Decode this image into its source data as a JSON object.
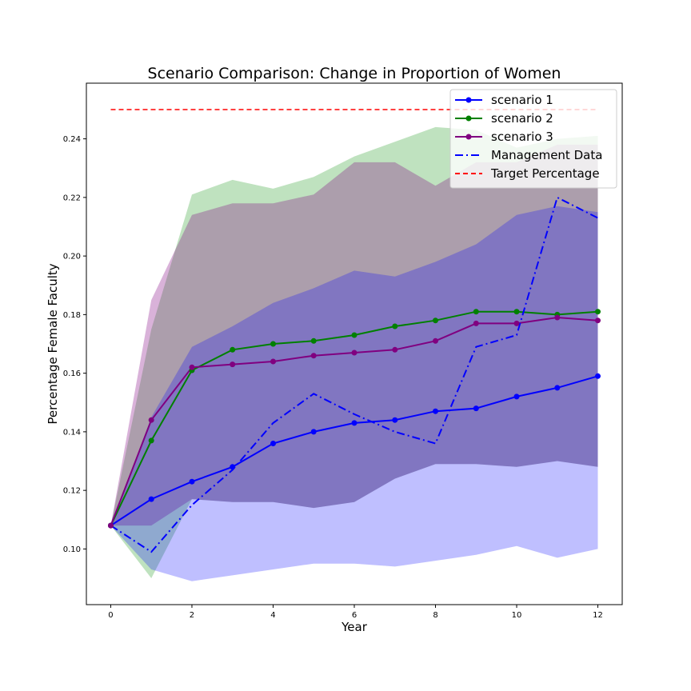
{
  "chart_data": {
    "type": "line",
    "title": "Scenario Comparison: Change in Proportion of Women",
    "xlabel": "Year",
    "ylabel": "Percentage Female Faculty",
    "xlim": [
      -0.6,
      12.6
    ],
    "ylim": [
      0.081,
      0.259
    ],
    "x_ticks": [
      0,
      2,
      4,
      6,
      8,
      10,
      12
    ],
    "y_ticks": [
      0.1,
      0.12,
      0.14,
      0.16,
      0.18,
      0.2,
      0.22,
      0.24
    ],
    "x_tick_labels": [
      "0",
      "2",
      "4",
      "6",
      "8",
      "10",
      "12"
    ],
    "y_tick_labels": [
      "0.10",
      "0.12",
      "0.14",
      "0.16",
      "0.18",
      "0.20",
      "0.22",
      "0.24"
    ],
    "grid": false,
    "legend_position": "top-right",
    "x": [
      0,
      1,
      2,
      3,
      4,
      5,
      6,
      7,
      8,
      9,
      10,
      11,
      12
    ],
    "bands": [
      {
        "color": "#2ca02c",
        "alpha": 0.3,
        "upper": [
          0.108,
          0.175,
          0.221,
          0.226,
          0.223,
          0.227,
          0.234,
          0.239,
          0.244,
          0.243,
          0.237,
          0.24,
          0.241
        ],
        "lower": [
          0.108,
          0.09,
          0.117,
          0.116,
          0.116,
          0.114,
          0.116,
          0.124,
          0.129,
          0.129,
          0.128,
          0.13,
          0.128
        ]
      },
      {
        "color": "#800080",
        "alpha": 0.3,
        "upper": [
          0.108,
          0.185,
          0.214,
          0.218,
          0.218,
          0.221,
          0.232,
          0.232,
          0.224,
          0.232,
          0.232,
          0.238,
          0.238
        ],
        "lower": [
          0.108,
          0.108,
          0.117,
          0.116,
          0.116,
          0.114,
          0.116,
          0.124,
          0.129,
          0.129,
          0.128,
          0.13,
          0.128
        ]
      },
      {
        "color": "#0000ff",
        "alpha": 0.25,
        "upper": [
          0.108,
          0.145,
          0.169,
          0.176,
          0.184,
          0.189,
          0.195,
          0.193,
          0.198,
          0.204,
          0.214,
          0.217,
          0.215
        ],
        "lower": [
          0.108,
          0.093,
          0.089,
          0.091,
          0.093,
          0.095,
          0.095,
          0.094,
          0.096,
          0.098,
          0.101,
          0.097,
          0.1
        ]
      }
    ],
    "series": [
      {
        "name": "scenario 1",
        "color": "#0000ff",
        "style": "solid",
        "marker": "circle",
        "values": [
          0.108,
          0.117,
          0.123,
          0.128,
          0.136,
          0.14,
          0.143,
          0.144,
          0.147,
          0.148,
          0.152,
          0.155,
          0.159
        ]
      },
      {
        "name": "scenario 2",
        "color": "#008000",
        "style": "solid",
        "marker": "circle",
        "values": [
          0.108,
          0.137,
          0.161,
          0.168,
          0.17,
          0.171,
          0.173,
          0.176,
          0.178,
          0.181,
          0.181,
          0.18,
          0.181
        ]
      },
      {
        "name": "scenario 3",
        "color": "#800080",
        "style": "solid",
        "marker": "circle",
        "values": [
          0.108,
          0.144,
          0.162,
          0.163,
          0.164,
          0.166,
          0.167,
          0.168,
          0.171,
          0.177,
          0.177,
          0.179,
          0.178
        ]
      },
      {
        "name": "Management Data",
        "color": "#0000ff",
        "style": "dashdot",
        "marker": "none",
        "values": [
          0.108,
          0.099,
          0.115,
          0.127,
          0.143,
          0.153,
          0.146,
          0.14,
          0.136,
          0.169,
          0.173,
          0.22,
          0.213
        ]
      },
      {
        "name": "Target Percentage",
        "color": "#ff0000",
        "style": "dashed",
        "marker": "none",
        "values": [
          0.25,
          0.25,
          0.25,
          0.25,
          0.25,
          0.25,
          0.25,
          0.25,
          0.25,
          0.25,
          0.25,
          0.25,
          0.25
        ]
      }
    ]
  }
}
